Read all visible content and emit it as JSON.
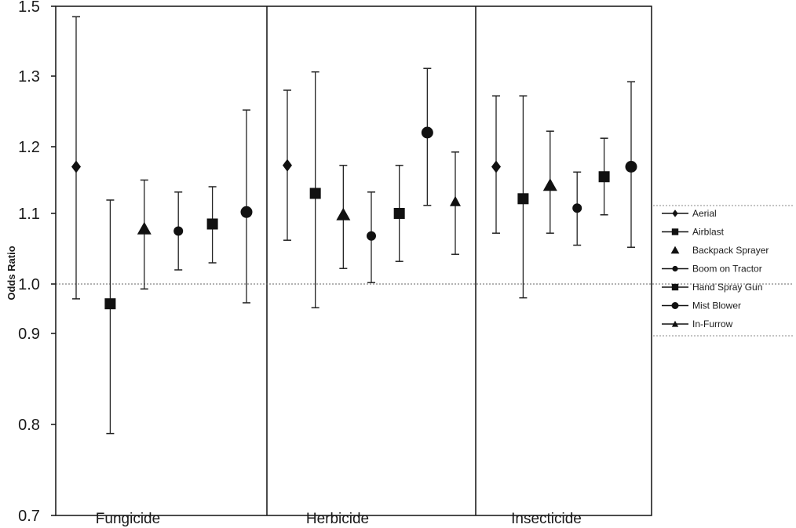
{
  "chart_data": {
    "type": "scatter",
    "ylabel": "Odds Ratio",
    "xlabel": "",
    "ylim": [
      0.7,
      1.5
    ],
    "yticks": [
      "1.5",
      "1.3",
      "1.2",
      "1.1",
      "1.0",
      "0.9",
      "0.8",
      "0.7"
    ],
    "groups": [
      "Fungicide",
      "Herbicide",
      "Insecticide"
    ],
    "reference_line": 1.0,
    "legend_position": "right",
    "series": [
      {
        "name": "Aerial",
        "marker": "diamond",
        "values": [
          1.17,
          1.172,
          1.17
        ],
        "lower": [
          0.97,
          1.062,
          1.072
        ],
        "upper": [
          1.47,
          1.28,
          1.272
        ]
      },
      {
        "name": "Airblast",
        "marker": "square",
        "values": [
          0.96,
          1.13,
          1.122
        ],
        "lower": [
          0.79,
          0.952,
          0.972
        ],
        "upper": [
          1.12,
          1.312,
          1.272
        ]
      },
      {
        "name": "Backpack Sprayer",
        "marker": "triangle",
        "values": [
          1.078,
          1.098,
          1.142
        ],
        "lower": [
          0.99,
          1.022,
          1.072
        ],
        "upper": [
          1.15,
          1.172,
          1.222
        ]
      },
      {
        "name": "Boom on Tractor",
        "marker": "circle-small",
        "values": [
          1.075,
          1.068,
          1.108
        ],
        "lower": [
          1.02,
          1.002,
          1.055
        ],
        "upper": [
          1.132,
          1.132,
          1.162
        ]
      },
      {
        "name": "Hand Spray Gun",
        "marker": "square",
        "values": [
          1.085,
          1.1,
          1.155
        ],
        "lower": [
          1.03,
          1.032,
          1.098
        ],
        "upper": [
          1.14,
          1.172,
          1.212
        ]
      },
      {
        "name": "Mist Blower",
        "marker": "circle",
        "values": [
          1.102,
          1.22,
          1.17
        ],
        "lower": [
          0.962,
          1.112,
          1.052
        ],
        "upper": [
          1.252,
          1.322,
          1.292
        ]
      },
      {
        "name": "In-Furrow",
        "marker": "triangle-small",
        "values": [
          null,
          1.118,
          null
        ],
        "lower": [
          null,
          1.042,
          null
        ],
        "upper": [
          null,
          1.192,
          null
        ]
      }
    ]
  }
}
